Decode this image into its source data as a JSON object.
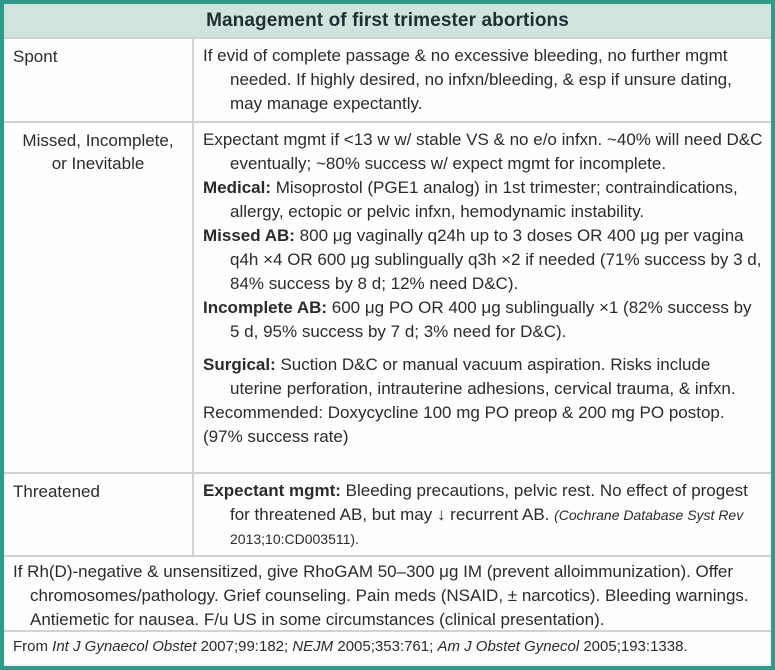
{
  "title": "Management of first trimester abortions",
  "colors": {
    "border_teal": "#2f9b8d",
    "header_bg": "#d0e4de",
    "divider_gray": "#d2d2d2",
    "text": "#2b2b2b"
  },
  "rows": [
    {
      "label": "Spont",
      "paragraphs": [
        {
          "runs": [
            {
              "t": "If evid of complete passage & no excessive bleeding, no further mgmt needed. If highly desired, no infxn/bleeding, & esp if unsure dating, may manage expectantly."
            }
          ]
        }
      ]
    },
    {
      "label": "Missed, Incomplete,\nor Inevitable",
      "paragraphs": [
        {
          "runs": [
            {
              "t": "Expectant mgmt if <13 w w/ stable VS & no e/o infxn. ~40% will need D&C eventually; ~80% success w/ expect mgmt for incomplete."
            }
          ]
        },
        {
          "runs": [
            {
              "t": "Medical:",
              "b": true
            },
            {
              "t": " Misoprostol (PGE1 analog) in 1st trimester; contraindications, allergy, ectopic or pelvic infxn, hemodynamic instability."
            }
          ]
        },
        {
          "runs": [
            {
              "t": "Missed AB:",
              "b": true
            },
            {
              "t": " 800 μg vaginally q24h up to 3 doses OR 400 μg per vagina q4h ×4 OR 600 μg sublingually q3h ×2 if needed (71% success by 3 d, 84% success by 8 d; 12% need D&C)."
            }
          ]
        },
        {
          "runs": [
            {
              "t": "Incomplete AB:",
              "b": true
            },
            {
              "t": " 600 μg PO OR 400 μg sublingually ×1 (82% success by 5 d, 95% success by 7 d; 3% need for D&C)."
            }
          ]
        },
        {
          "gap": true,
          "runs": [
            {
              "t": "Surgical:",
              "b": true
            },
            {
              "t": " Suction D&C or manual vacuum aspiration. Risks include uterine perforation, intrauterine adhesions, cervical trauma, & infxn."
            }
          ]
        },
        {
          "flush": true,
          "runs": [
            {
              "t": "Recommended: Doxycycline 100 mg PO preop & 200 mg PO postop. (97% success rate)"
            }
          ]
        }
      ]
    },
    {
      "label": "Threatened",
      "paragraphs": [
        {
          "runs": [
            {
              "t": "Expectant mgmt:",
              "b": true
            },
            {
              "t": " Bleeding precautions, pelvic rest. No effect of progest for threatened AB, but may ↓ recurrent AB. "
            },
            {
              "t": "(Cochrane Database Syst Rev ",
              "i": true,
              "sm": true
            },
            {
              "t": "2013;10:CD003511).",
              "sm": true
            }
          ]
        }
      ]
    }
  ],
  "footnote": {
    "paragraphs": [
      {
        "runs": [
          {
            "t": "If Rh(D)-negative & unsensitized, give RhoGAM 50–300 μg IM (prevent alloimmunization). Offer chromosomes/pathology. Grief counseling. Pain meds (NSAID, ± narcotics). Bleeding warnings. Antiemetic for nausea. F/u US in some circumstances (clinical presentation)."
          }
        ]
      }
    ]
  },
  "source": {
    "runs": [
      {
        "t": "From "
      },
      {
        "t": "Int J Gynaecol Obstet",
        "i": true
      },
      {
        "t": " 2007;99:182; "
      },
      {
        "t": "NEJM",
        "i": true
      },
      {
        "t": " 2005;353:761; "
      },
      {
        "t": "Am J Obstet Gynecol",
        "i": true
      },
      {
        "t": " 2005;193:1338."
      }
    ]
  }
}
